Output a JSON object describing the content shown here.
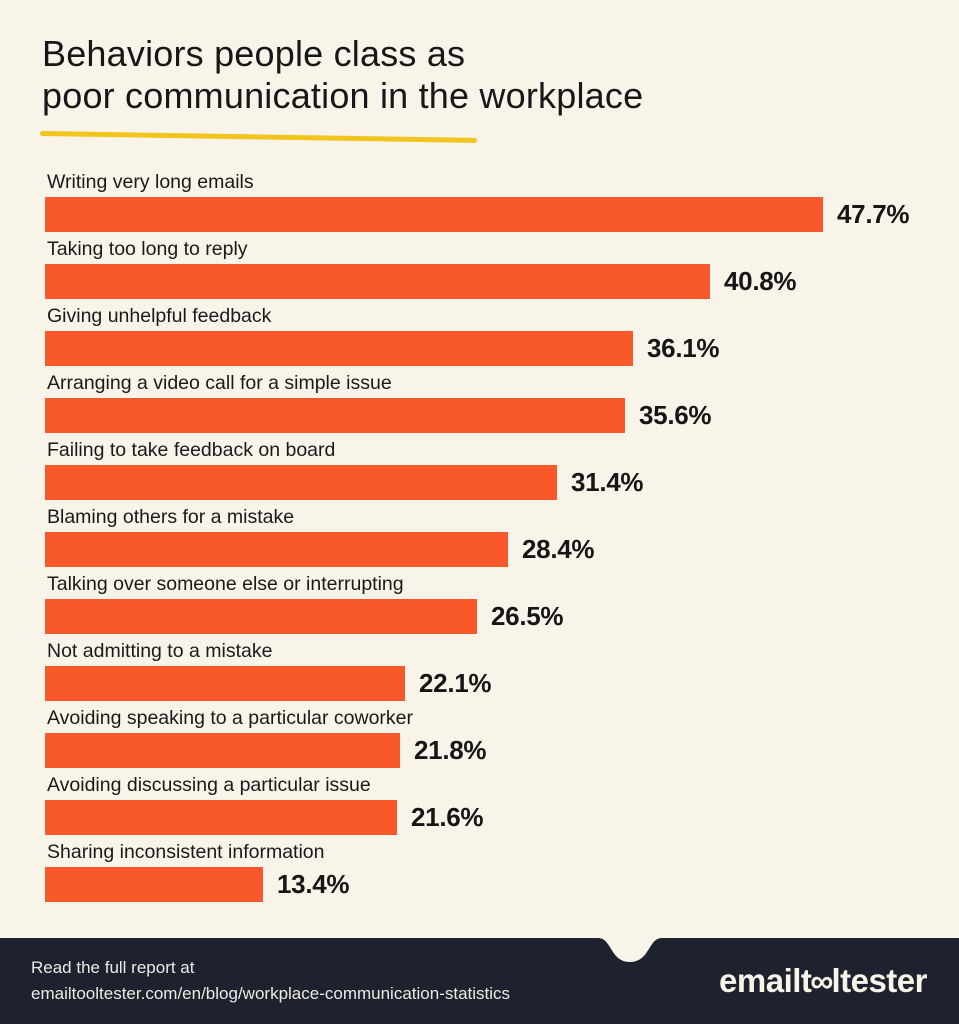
{
  "title": {
    "line1": "Behaviors people class as",
    "line2": "poor communication in the workplace"
  },
  "colors": {
    "background": "#F8F4E9",
    "bar": "#F9582B",
    "underline": "#F2C51D",
    "footer_background": "#1D222E",
    "text": "#171717",
    "footer_text": "#ECEAE3"
  },
  "chart_data": {
    "type": "bar",
    "orientation": "horizontal",
    "title": "Behaviors people class as poor communication in the workplace",
    "categories": [
      "Writing very long emails",
      "Taking too long to reply",
      "Giving unhelpful feedback",
      "Arranging a video call for a simple issue",
      "Failing to take feedback on board",
      "Blaming others for a mistake",
      "Talking over someone else or interrupting",
      "Not admitting to a mistake",
      "Avoiding speaking to a particular coworker",
      "Avoiding discussing a particular issue",
      "Sharing inconsistent information"
    ],
    "values": [
      47.7,
      40.8,
      36.1,
      35.6,
      31.4,
      28.4,
      26.5,
      22.1,
      21.8,
      21.6,
      13.4
    ],
    "value_labels": [
      "47.7%",
      "40.8%",
      "36.1%",
      "35.6%",
      "31.4%",
      "28.4%",
      "26.5%",
      "22.1%",
      "21.8%",
      "21.6%",
      "13.4%"
    ],
    "xlabel": "",
    "ylabel": "",
    "xlim": [
      0,
      50
    ],
    "grid": false,
    "legend": false,
    "data_labels": "outside-end"
  },
  "footer": {
    "line1": "Read the full report at",
    "line2": "emailtooltester.com/en/blog/workplace-communication-statistics",
    "logo_prefix": "emailt",
    "logo_oo": "∞",
    "logo_suffix": "ltester"
  }
}
